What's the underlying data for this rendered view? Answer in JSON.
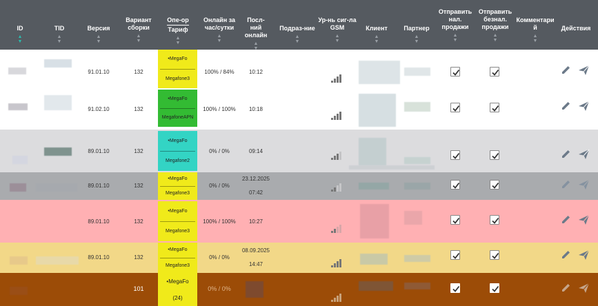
{
  "columns": {
    "id": "ID",
    "tid": "TID",
    "version": "Версия",
    "build": "Вариант сборки",
    "operator": "Опе-ор",
    "tariff": "Тариф",
    "online": "Онлайн за час/сутки",
    "last_online": "Посл-ний онлайн",
    "division": "Подраз-ние",
    "gsm": "Ур-нь сиг-ла GSM",
    "client": "Клиент",
    "partner": "Партнер",
    "send_cash": "Отправить нал. продажи",
    "send_cashless": "Отправить безнал. продажи",
    "comment": "Комментарий",
    "actions": "Действия"
  },
  "rows": [
    {
      "version": "91.01.10",
      "build": "132",
      "operator": "•MegaFo",
      "tariff": "Megafone3",
      "online": "100% / 84%",
      "last_online": "10:12",
      "last_online_time": "",
      "signal": 4,
      "cash": true,
      "cashless": true
    },
    {
      "version": "91.02.10",
      "build": "132",
      "operator": "•MegaFo",
      "tariff": "MegafoneAPN",
      "online": "100% / 100%",
      "last_online": "10:18",
      "last_online_time": "",
      "signal": 4,
      "cash": true,
      "cashless": true
    },
    {
      "version": "89.01.10",
      "build": "132",
      "operator": "•MegaFo",
      "tariff": "Megafone2",
      "online": "0% / 0%",
      "last_online": "09:14",
      "last_online_time": "",
      "signal": 3,
      "cash": true,
      "cashless": true
    },
    {
      "version": "89.01.10",
      "build": "132",
      "operator": "•MegaFo",
      "tariff": "Megafone3",
      "online": "0% / 0%",
      "last_online": "23.12.2025",
      "last_online_time": "07:42",
      "signal": 1,
      "cash": true,
      "cashless": true
    },
    {
      "version": "89.01.10",
      "build": "132",
      "operator": "•MegaFo",
      "tariff": "Megafone3",
      "online": "100% / 100%",
      "last_online": "10:27",
      "last_online_time": "",
      "signal": 2,
      "cash": true,
      "cashless": true
    },
    {
      "version": "89.01.10",
      "build": "132",
      "operator": "•MegaFo",
      "tariff": "Megafone3",
      "online": "0% / 0%",
      "last_online": "08.09.2025",
      "last_online_time": "14:47",
      "signal": 4,
      "cash": true,
      "cashless": true
    },
    {
      "version": "",
      "build": "101",
      "operator": "•MegaFo",
      "tariff": "(24)",
      "online": "0% / 0%",
      "last_online": "",
      "last_online_time": "",
      "signal": 4,
      "cash": true,
      "cashless": true
    }
  ],
  "colors": {
    "header": "#555a60",
    "row_white": "#ffffff",
    "row_gray": "#dcdcde",
    "row_dark_gray": "#a9abae",
    "row_pink": "#ffb0b3",
    "row_yellow": "#f2d888",
    "row_brown": "#9c4c07",
    "op_yellow": "#f0ea1a",
    "op_green": "#33bb33",
    "op_teal": "#33d4c4",
    "accent_sort": "#2bbbad",
    "action_icon": "#6c7a89"
  },
  "icons": {
    "edit": "pencil-icon",
    "send": "paper-plane-icon",
    "sort": "sort-arrows-icon",
    "signal": "signal-bars-icon",
    "check": "checkmark-icon"
  }
}
